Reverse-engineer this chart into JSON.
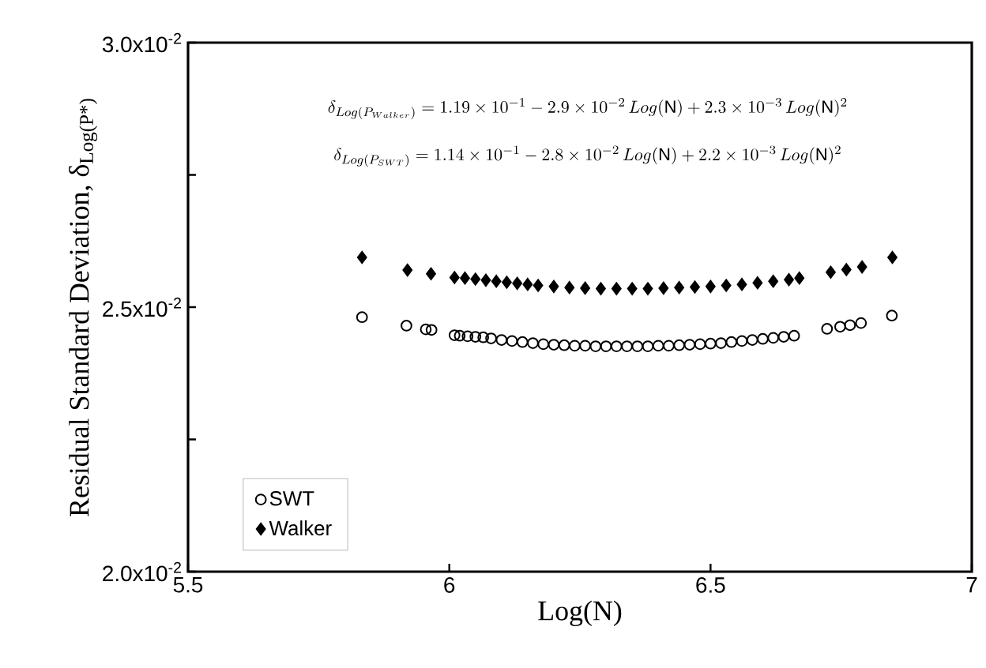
{
  "chart_data": {
    "type": "scatter",
    "xlabel": "Log(N)",
    "ylabel": "Residual Standard Deviation, δ$_{Log(P*)}$",
    "xlim": [
      5.5,
      7
    ],
    "xticks": [
      5.5,
      6,
      6.5,
      7
    ],
    "ylim": [
      0.02,
      0.03
    ],
    "yticks": [
      {
        "value": 0.02,
        "label": "2.0x10$^{-2}$"
      },
      {
        "value": 0.0225,
        "label": null
      },
      {
        "value": 0.025,
        "label": "2.5x10$^{-2}$"
      },
      {
        "value": 0.0275,
        "label": null
      },
      {
        "value": 0.03,
        "label": "3.0x10$^{-2}$"
      }
    ],
    "grid": false,
    "legend": "bottom left",
    "annotations": [
      "\\delta_{Log(P_{Walker})} = 1.19\\times 10^{-1} - 2.9\\times 10^{-2}\\,Log(\\mathrm{N}) + 2.3\\times 10^{-3}\\,Log(\\mathrm{N})^{2}",
      "\\delta_{Log(P_{SWT})} = 1.14\\times 10^{-1} - 2.8\\times 10^{-2}\\,Log(\\mathrm{N}) + 2.2\\times 10^{-3}\\,Log(\\mathrm{N})^{2}"
    ],
    "series": [
      {
        "name": "SWT",
        "color": "#000000",
        "marker": "circle",
        "x": [
          5.833,
          5.918,
          5.955,
          5.966,
          6.01,
          6.02,
          6.035,
          6.05,
          6.065,
          6.08,
          6.1,
          6.12,
          6.14,
          6.16,
          6.18,
          6.2,
          6.22,
          6.24,
          6.26,
          6.28,
          6.3,
          6.32,
          6.34,
          6.36,
          6.38,
          6.4,
          6.42,
          6.44,
          6.46,
          6.48,
          6.5,
          6.52,
          6.54,
          6.56,
          6.58,
          6.6,
          6.62,
          6.64,
          6.66,
          6.723,
          6.748,
          6.767,
          6.788,
          6.847
        ],
        "values": [
          0.02481,
          0.02465,
          0.02458,
          0.02457,
          0.02447,
          0.02446,
          0.02445,
          0.02444,
          0.02443,
          0.02441,
          0.02438,
          0.02436,
          0.02434,
          0.02432,
          0.0243,
          0.02429,
          0.02428,
          0.02427,
          0.02427,
          0.02426,
          0.02426,
          0.02426,
          0.02426,
          0.02426,
          0.02426,
          0.02427,
          0.02427,
          0.02428,
          0.02429,
          0.0243,
          0.02431,
          0.02432,
          0.02434,
          0.02436,
          0.02438,
          0.0244,
          0.02442,
          0.02444,
          0.02446,
          0.02459,
          0.02463,
          0.02466,
          0.0247,
          0.02484
        ]
      },
      {
        "name": "Walker",
        "color": "#000000",
        "marker": "diamond",
        "x": [
          5.833,
          5.92,
          5.965,
          6.01,
          6.03,
          6.05,
          6.07,
          6.09,
          6.11,
          6.13,
          6.15,
          6.17,
          6.2,
          6.23,
          6.26,
          6.29,
          6.32,
          6.35,
          6.38,
          6.41,
          6.44,
          6.47,
          6.5,
          6.53,
          6.56,
          6.59,
          6.62,
          6.65,
          6.67,
          6.73,
          6.76,
          6.79,
          6.848
        ],
        "values": [
          0.02594,
          0.0257,
          0.02563,
          0.02556,
          0.02555,
          0.02553,
          0.02551,
          0.02549,
          0.02547,
          0.02545,
          0.02543,
          0.02541,
          0.02539,
          0.02537,
          0.02536,
          0.02535,
          0.02535,
          0.02535,
          0.02535,
          0.02536,
          0.02537,
          0.02538,
          0.02539,
          0.02541,
          0.02543,
          0.02546,
          0.02549,
          0.02552,
          0.02555,
          0.02566,
          0.02571,
          0.02576,
          0.02594
        ]
      }
    ]
  }
}
